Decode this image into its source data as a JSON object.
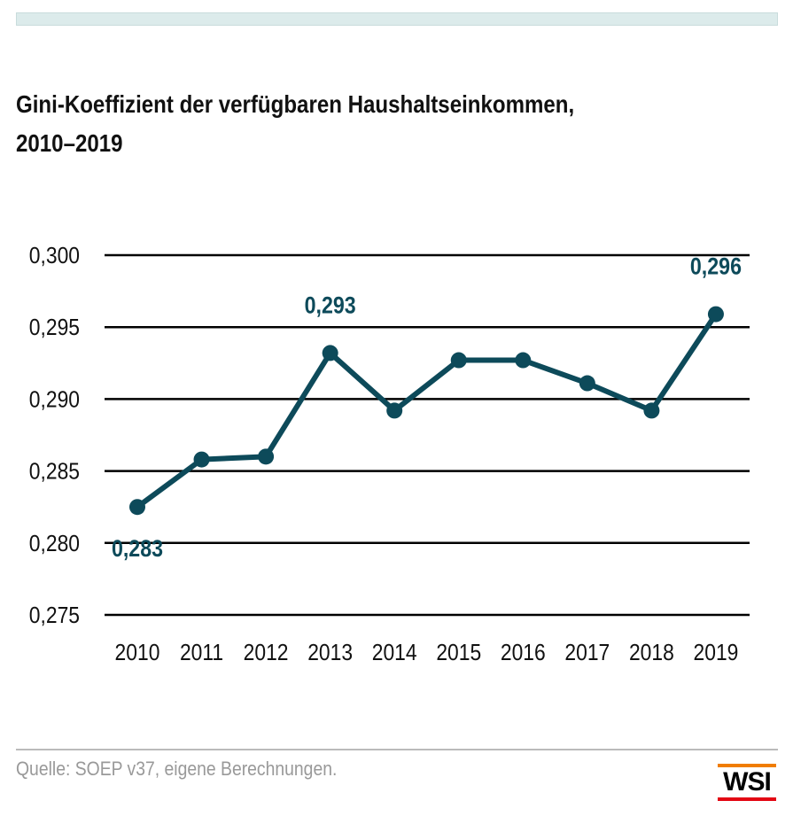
{
  "title_line1": "Gini-Koeffizient der verfügbaren Haushaltseinkommen,",
  "title_line2": "2010–2019",
  "source": "Quelle: SOEP v37, eigene Berechnungen.",
  "logo": "WSI",
  "colors": {
    "line": "#0d4a5a",
    "grid": "#000000",
    "topbar": "#dcebeb",
    "logo_top": "#f07d00",
    "logo_bottom": "#e30613"
  },
  "chart_data": {
    "type": "line",
    "categories": [
      "2010",
      "2011",
      "2012",
      "2013",
      "2014",
      "2015",
      "2016",
      "2017",
      "2018",
      "2019"
    ],
    "values": [
      0.2825,
      0.2858,
      0.286,
      0.2932,
      0.2892,
      0.2927,
      0.2927,
      0.2911,
      0.2892,
      0.2959
    ],
    "ylim": [
      0.275,
      0.3
    ],
    "yticks": [
      "0,300",
      "0,295",
      "0,290",
      "0,285",
      "0,280",
      "0,275"
    ],
    "grid": true,
    "data_labels": [
      {
        "index": 0,
        "text": "0,283",
        "position": "below"
      },
      {
        "index": 3,
        "text": "0,293",
        "position": "above"
      },
      {
        "index": 9,
        "text": "0,296",
        "position": "above"
      }
    ]
  }
}
